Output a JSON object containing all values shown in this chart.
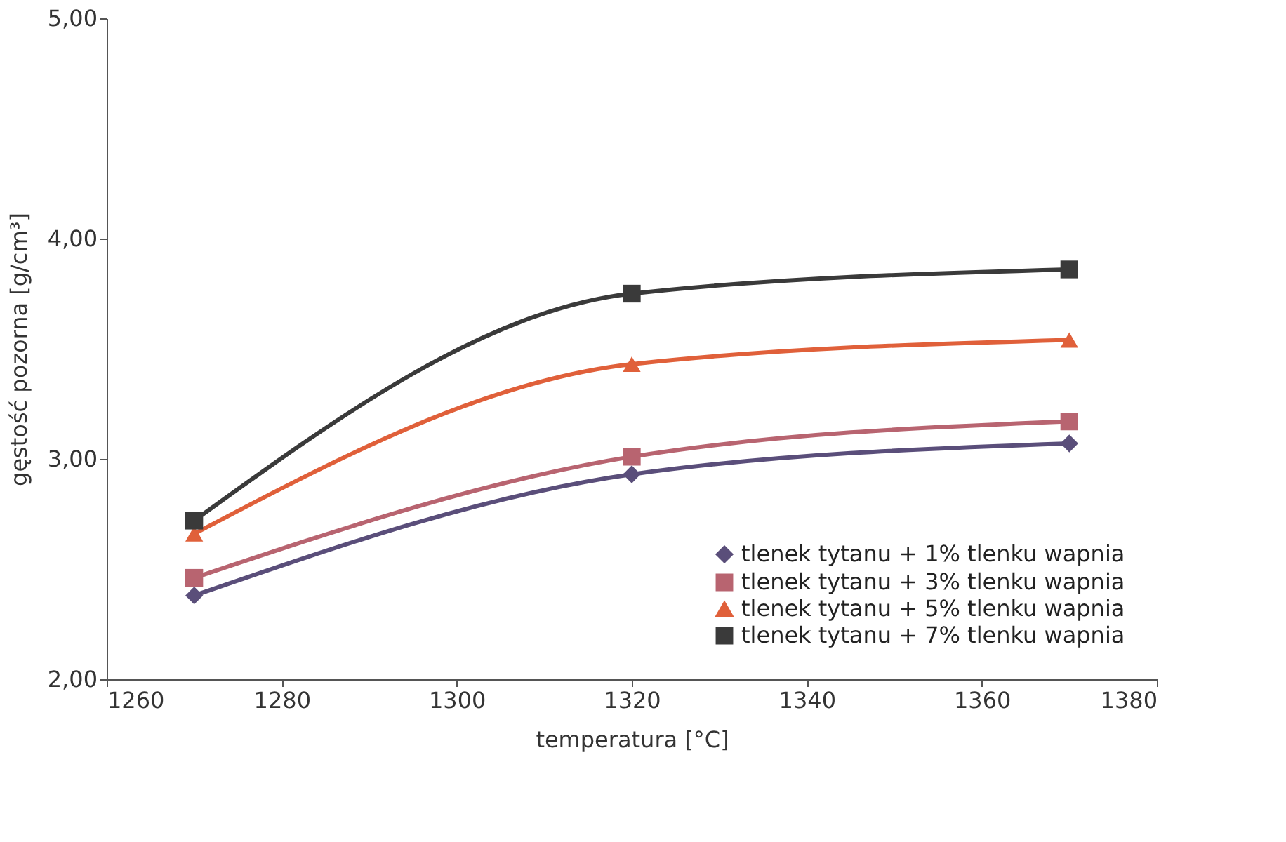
{
  "chart_data": {
    "type": "line",
    "xlabel": "temperatura [°C]",
    "ylabel": "gęstość pozorna [g/cm³]",
    "x": [
      1270,
      1320,
      1370
    ],
    "series": [
      {
        "name": "tlenek tytanu + 1% tlenku wapnia",
        "color": "#5a4e7a",
        "marker": "diamond",
        "values": [
          2.38,
          2.93,
          3.07
        ]
      },
      {
        "name": "tlenek tytanu + 3% tlenku wapnia",
        "color": "#b86470",
        "marker": "square",
        "values": [
          2.46,
          3.01,
          3.17
        ]
      },
      {
        "name": "tlenek tytanu + 5% tlenku wapnia",
        "color": "#e0603a",
        "marker": "triangle",
        "values": [
          2.66,
          3.43,
          3.54
        ]
      },
      {
        "name": "tlenek tytanu + 7% tlenku wapnia",
        "color": "#3a3a3a",
        "marker": "square",
        "values": [
          2.72,
          3.75,
          3.86
        ]
      }
    ],
    "xlim": [
      1260,
      1380
    ],
    "xticks": [
      1260,
      1280,
      1300,
      1320,
      1340,
      1360,
      1380
    ],
    "ylim": [
      2,
      5
    ],
    "yticks": [
      {
        "value": 2,
        "label": "2,00"
      },
      {
        "value": 3,
        "label": "3,00"
      },
      {
        "value": 4,
        "label": "4,00"
      },
      {
        "value": 5,
        "label": "5,00"
      }
    ],
    "grid": false,
    "legend": "bottom right",
    "line_style": "solid"
  }
}
